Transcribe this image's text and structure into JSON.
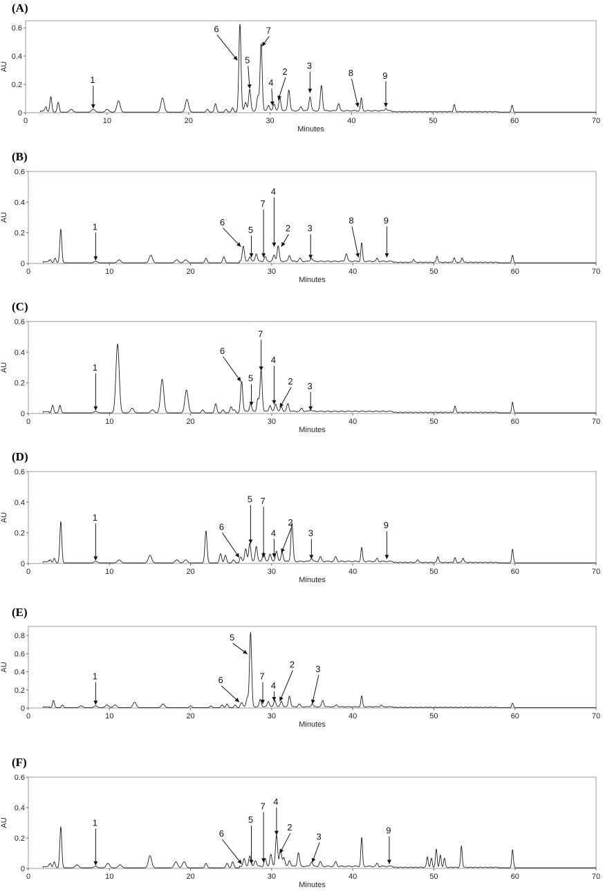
{
  "chart_data": [
    {
      "panel": "(A)",
      "type": "line",
      "xlabel": "Minutes",
      "ylabel": "AU",
      "xlim": [
        0,
        70
      ],
      "ylim": [
        0,
        0.65
      ],
      "xticks": [
        0,
        10,
        20,
        30,
        40,
        50,
        60,
        70
      ],
      "yticks": [
        0,
        0.2,
        0.4,
        0.6
      ],
      "ytick_labels": [
        "0",
        "0.2",
        "0.4",
        "0.6"
      ],
      "peaks": [
        [
          2.5,
          0.03
        ],
        [
          3.1,
          0.11
        ],
        [
          4.0,
          0.07
        ],
        [
          5.6,
          0.02
        ],
        [
          8.3,
          0.02
        ],
        [
          10.0,
          0.02
        ],
        [
          11.4,
          0.08
        ],
        [
          16.8,
          0.1
        ],
        [
          19.8,
          0.09
        ],
        [
          22.3,
          0.02
        ],
        [
          23.3,
          0.06
        ],
        [
          24.6,
          0.02
        ],
        [
          25.4,
          0.03
        ],
        [
          26.3,
          0.62
        ],
        [
          27.0,
          0.06
        ],
        [
          27.5,
          0.15
        ],
        [
          28.5,
          0.1
        ],
        [
          28.9,
          0.48
        ],
        [
          29.8,
          0.04
        ],
        [
          30.5,
          0.05
        ],
        [
          31.2,
          0.09
        ],
        [
          32.3,
          0.15
        ],
        [
          33.8,
          0.03
        ],
        [
          34.9,
          0.1
        ],
        [
          36.3,
          0.18
        ],
        [
          38.4,
          0.05
        ],
        [
          41.2,
          0.09
        ],
        [
          44.2,
          0.02
        ],
        [
          52.6,
          0.05
        ],
        [
          59.7,
          0.05
        ]
      ],
      "annotations": [
        {
          "label": "1",
          "x": 8.3,
          "y": 0.02,
          "dx": 0,
          "dy": 0.18
        },
        {
          "label": "6",
          "x": 26.0,
          "y": 0.36,
          "dx": -2.5,
          "dy": 0.2
        },
        {
          "label": "5",
          "x": 27.5,
          "y": 0.16,
          "dx": -0.2,
          "dy": 0.18
        },
        {
          "label": "7",
          "x": 29.0,
          "y": 0.46,
          "dx": 0.9,
          "dy": 0.09
        },
        {
          "label": "4",
          "x": 30.3,
          "y": 0.04,
          "dx": -0.1,
          "dy": 0.14
        },
        {
          "label": "2",
          "x": 31.0,
          "y": 0.08,
          "dx": 0.9,
          "dy": 0.18
        },
        {
          "label": "3",
          "x": 34.9,
          "y": 0.13,
          "dx": 0,
          "dy": 0.17
        },
        {
          "label": "8",
          "x": 40.8,
          "y": 0.03,
          "dx": -0.8,
          "dy": 0.22
        },
        {
          "label": "9",
          "x": 44.2,
          "y": 0.03,
          "dx": 0,
          "dy": 0.2
        }
      ]
    },
    {
      "panel": "(B)",
      "type": "line",
      "xlabel": "Minutes",
      "ylabel": "AU",
      "xlim": [
        0,
        70
      ],
      "ylim": [
        0,
        0.6
      ],
      "xticks": [
        0,
        10,
        20,
        30,
        40,
        50,
        60,
        70
      ],
      "yticks": [
        0,
        0.2,
        0.4,
        0.6
      ],
      "ytick_labels": [
        "0",
        "0.2",
        "0.4",
        "0.6"
      ],
      "peaks": [
        [
          2.7,
          0.02
        ],
        [
          3.3,
          0.03
        ],
        [
          4.0,
          0.22
        ],
        [
          8.3,
          0.01
        ],
        [
          11.2,
          0.02
        ],
        [
          15.1,
          0.05
        ],
        [
          18.3,
          0.02
        ],
        [
          19.4,
          0.02
        ],
        [
          21.9,
          0.03
        ],
        [
          24.1,
          0.04
        ],
        [
          26.5,
          0.1
        ],
        [
          27.3,
          0.03
        ],
        [
          28.1,
          0.05
        ],
        [
          29.2,
          0.03
        ],
        [
          30.3,
          0.04
        ],
        [
          30.8,
          0.1
        ],
        [
          32.2,
          0.04
        ],
        [
          33.5,
          0.02
        ],
        [
          34.9,
          0.02
        ],
        [
          39.2,
          0.05
        ],
        [
          41.1,
          0.12
        ],
        [
          43.0,
          0.02
        ],
        [
          47.5,
          0.02
        ],
        [
          50.4,
          0.04
        ],
        [
          52.5,
          0.03
        ],
        [
          53.5,
          0.03
        ],
        [
          59.7,
          0.05
        ]
      ],
      "annotations": [
        {
          "label": "1",
          "x": 8.3,
          "y": 0.01,
          "dx": 0,
          "dy": 0.2
        },
        {
          "label": "6",
          "x": 26.2,
          "y": 0.1,
          "dx": -2.2,
          "dy": 0.14
        },
        {
          "label": "5",
          "x": 27.5,
          "y": 0.03,
          "dx": 0,
          "dy": 0.16
        },
        {
          "label": "7",
          "x": 29.0,
          "y": 0.03,
          "dx": 0,
          "dy": 0.33
        },
        {
          "label": "4",
          "x": 30.3,
          "y": 0.1,
          "dx": 0,
          "dy": 0.34
        },
        {
          "label": "2",
          "x": 31.2,
          "y": 0.1,
          "dx": 0.9,
          "dy": 0.1
        },
        {
          "label": "3",
          "x": 34.8,
          "y": 0.02,
          "dx": 0,
          "dy": 0.18
        },
        {
          "label": "8",
          "x": 40.7,
          "y": 0.03,
          "dx": -0.8,
          "dy": 0.22
        },
        {
          "label": "9",
          "x": 44.2,
          "y": 0.03,
          "dx": 0,
          "dy": 0.22
        }
      ]
    },
    {
      "panel": "(C)",
      "type": "line",
      "xlabel": "Minutes",
      "ylabel": "AU",
      "xlim": [
        0,
        70
      ],
      "ylim": [
        0,
        0.6
      ],
      "xticks": [
        0,
        10,
        20,
        30,
        40,
        50,
        60,
        70
      ],
      "yticks": [
        0,
        0.2,
        0.4,
        0.6
      ],
      "ytick_labels": [
        "0",
        "0.2",
        "0.4",
        "0.6"
      ],
      "peaks": [
        [
          3.0,
          0.05
        ],
        [
          3.9,
          0.05
        ],
        [
          8.3,
          0.01
        ],
        [
          11.0,
          0.45
        ],
        [
          12.8,
          0.03
        ],
        [
          15.3,
          0.02
        ],
        [
          16.5,
          0.22
        ],
        [
          19.5,
          0.15
        ],
        [
          21.5,
          0.02
        ],
        [
          23.1,
          0.06
        ],
        [
          24.0,
          0.02
        ],
        [
          25.0,
          0.04
        ],
        [
          25.4,
          0.02
        ],
        [
          26.3,
          0.2
        ],
        [
          27.4,
          0.05
        ],
        [
          28.3,
          0.08
        ],
        [
          28.7,
          0.27
        ],
        [
          29.8,
          0.04
        ],
        [
          30.5,
          0.05
        ],
        [
          31.2,
          0.03
        ],
        [
          32.0,
          0.05
        ],
        [
          33.7,
          0.02
        ],
        [
          34.8,
          0.01
        ],
        [
          52.6,
          0.04
        ],
        [
          59.7,
          0.07
        ]
      ],
      "annotations": [
        {
          "label": "1",
          "x": 8.3,
          "y": 0.01,
          "dx": 0,
          "dy": 0.26
        },
        {
          "label": "6",
          "x": 26.2,
          "y": 0.2,
          "dx": -2.2,
          "dy": 0.18
        },
        {
          "label": "5",
          "x": 27.5,
          "y": 0.04,
          "dx": 0,
          "dy": 0.16
        },
        {
          "label": "7",
          "x": 28.7,
          "y": 0.27,
          "dx": 0,
          "dy": 0.22
        },
        {
          "label": "4",
          "x": 30.3,
          "y": 0.05,
          "dx": 0,
          "dy": 0.27
        },
        {
          "label": "2",
          "x": 31.0,
          "y": 0.03,
          "dx": 1.4,
          "dy": 0.15
        },
        {
          "label": "3",
          "x": 34.8,
          "y": 0.01,
          "dx": 0,
          "dy": 0.14
        }
      ]
    },
    {
      "panel": "(D)",
      "type": "line",
      "xlabel": "Minutes",
      "ylabel": "AU",
      "xlim": [
        0,
        70
      ],
      "ylim": [
        0,
        0.6
      ],
      "xticks": [
        0,
        10,
        20,
        30,
        40,
        50,
        60,
        70
      ],
      "yticks": [
        0,
        0.2,
        0.4,
        0.6
      ],
      "ytick_labels": [
        "0",
        "0.2",
        "0.4",
        "0.6"
      ],
      "peaks": [
        [
          2.7,
          0.02
        ],
        [
          3.2,
          0.03
        ],
        [
          4.0,
          0.27
        ],
        [
          8.3,
          0.01
        ],
        [
          11.2,
          0.02
        ],
        [
          15.0,
          0.05
        ],
        [
          18.3,
          0.02
        ],
        [
          19.4,
          0.02
        ],
        [
          21.9,
          0.21
        ],
        [
          23.7,
          0.06
        ],
        [
          24.3,
          0.05
        ],
        [
          25.3,
          0.02
        ],
        [
          26.2,
          0.03
        ],
        [
          26.8,
          0.08
        ],
        [
          27.3,
          0.12
        ],
        [
          28.1,
          0.1
        ],
        [
          29.0,
          0.06
        ],
        [
          29.8,
          0.05
        ],
        [
          30.6,
          0.07
        ],
        [
          31.3,
          0.06
        ],
        [
          32.5,
          0.25
        ],
        [
          34.9,
          0.02
        ],
        [
          36.0,
          0.03
        ],
        [
          37.9,
          0.03
        ],
        [
          41.1,
          0.09
        ],
        [
          43.0,
          0.02
        ],
        [
          48.0,
          0.02
        ],
        [
          50.5,
          0.04
        ],
        [
          52.6,
          0.03
        ],
        [
          53.6,
          0.03
        ],
        [
          59.7,
          0.09
        ]
      ],
      "annotations": [
        {
          "label": "1",
          "x": 8.3,
          "y": 0.01,
          "dx": 0,
          "dy": 0.26
        },
        {
          "label": "6",
          "x": 26.0,
          "y": 0.03,
          "dx": -2.1,
          "dy": 0.18
        },
        {
          "label": "5",
          "x": 27.4,
          "y": 0.12,
          "dx": 0,
          "dy": 0.27
        },
        {
          "label": "7",
          "x": 29.0,
          "y": 0.03,
          "dx": 0,
          "dy": 0.35
        },
        {
          "label": "4",
          "x": 30.3,
          "y": 0.03,
          "dx": 0,
          "dy": 0.14
        },
        {
          "label": "2",
          "x": 31.2,
          "y": 0.06,
          "dx": 1.2,
          "dy": 0.18
        },
        {
          "label": "3",
          "x": 34.9,
          "y": 0.02,
          "dx": 0,
          "dy": 0.15
        },
        {
          "label": "9",
          "x": 44.2,
          "y": 0.02,
          "dx": 0,
          "dy": 0.2
        }
      ]
    },
    {
      "panel": "(E)",
      "type": "line",
      "xlabel": "Minutes",
      "ylabel": "AU",
      "xlim": [
        0,
        70
      ],
      "ylim": [
        0,
        0.9
      ],
      "xticks": [
        0,
        10,
        20,
        30,
        40,
        50,
        60,
        70
      ],
      "yticks": [
        0,
        0.2,
        0.4,
        0.6,
        0.8
      ],
      "ytick_labels": [
        "0",
        "0.2",
        "0.4",
        "0.6",
        "0.8"
      ],
      "peaks": [
        [
          3.1,
          0.08
        ],
        [
          4.2,
          0.03
        ],
        [
          6.5,
          0.02
        ],
        [
          8.3,
          0.02
        ],
        [
          9.7,
          0.03
        ],
        [
          10.7,
          0.03
        ],
        [
          13.1,
          0.06
        ],
        [
          16.6,
          0.04
        ],
        [
          20.0,
          0.02
        ],
        [
          22.5,
          0.02
        ],
        [
          23.9,
          0.03
        ],
        [
          24.5,
          0.04
        ],
        [
          25.5,
          0.03
        ],
        [
          26.3,
          0.05
        ],
        [
          27.0,
          0.1
        ],
        [
          27.4,
          0.82
        ],
        [
          28.6,
          0.08
        ],
        [
          29.6,
          0.06
        ],
        [
          30.4,
          0.07
        ],
        [
          31.2,
          0.06
        ],
        [
          32.2,
          0.12
        ],
        [
          33.4,
          0.03
        ],
        [
          35.0,
          0.03
        ],
        [
          36.3,
          0.07
        ],
        [
          38.0,
          0.02
        ],
        [
          41.1,
          0.12
        ],
        [
          43.5,
          0.02
        ],
        [
          59.7,
          0.05
        ]
      ],
      "annotations": [
        {
          "label": "1",
          "x": 8.3,
          "y": 0.02,
          "dx": 0,
          "dy": 0.28
        },
        {
          "label": "6",
          "x": 26.0,
          "y": 0.05,
          "dx": -2.2,
          "dy": 0.21
        },
        {
          "label": "5",
          "x": 27.0,
          "y": 0.58,
          "dx": -1.8,
          "dy": 0.15
        },
        {
          "label": "7",
          "x": 28.9,
          "y": 0.03,
          "dx": 0,
          "dy": 0.27
        },
        {
          "label": "4",
          "x": 30.3,
          "y": 0.06,
          "dx": 0,
          "dy": 0.14
        },
        {
          "label": "2",
          "x": 31.0,
          "y": 0.06,
          "dx": 1.6,
          "dy": 0.37
        },
        {
          "label": "3",
          "x": 35.0,
          "y": 0.03,
          "dx": 0.8,
          "dy": 0.35
        }
      ]
    },
    {
      "panel": "(F)",
      "type": "line",
      "xlabel": "Minutes",
      "ylabel": "AU",
      "xlim": [
        0,
        70
      ],
      "ylim": [
        0,
        0.6
      ],
      "xticks": [
        0,
        10,
        20,
        30,
        40,
        50,
        60,
        70
      ],
      "yticks": [
        0,
        0.2,
        0.4,
        0.6
      ],
      "ytick_labels": [
        "0",
        "0.2",
        "0.4",
        "0.6"
      ],
      "peaks": [
        [
          2.7,
          0.03
        ],
        [
          3.2,
          0.04
        ],
        [
          4.0,
          0.27
        ],
        [
          6.0,
          0.02
        ],
        [
          8.3,
          0.01
        ],
        [
          9.8,
          0.03
        ],
        [
          11.3,
          0.02
        ],
        [
          15.0,
          0.08
        ],
        [
          18.2,
          0.04
        ],
        [
          19.2,
          0.04
        ],
        [
          21.9,
          0.03
        ],
        [
          24.5,
          0.03
        ],
        [
          25.2,
          0.04
        ],
        [
          26.6,
          0.05
        ],
        [
          27.3,
          0.07
        ],
        [
          28.0,
          0.04
        ],
        [
          29.2,
          0.05
        ],
        [
          29.9,
          0.08
        ],
        [
          30.6,
          0.21
        ],
        [
          31.1,
          0.11
        ],
        [
          31.5,
          0.06
        ],
        [
          32.2,
          0.04
        ],
        [
          33.3,
          0.09
        ],
        [
          34.9,
          0.03
        ],
        [
          36.0,
          0.03
        ],
        [
          37.9,
          0.03
        ],
        [
          41.1,
          0.19
        ],
        [
          43.0,
          0.02
        ],
        [
          49.2,
          0.07
        ],
        [
          49.7,
          0.06
        ],
        [
          50.3,
          0.12
        ],
        [
          50.8,
          0.08
        ],
        [
          51.3,
          0.06
        ],
        [
          53.4,
          0.14
        ],
        [
          59.7,
          0.12
        ]
      ],
      "annotations": [
        {
          "label": "1",
          "x": 8.3,
          "y": 0.01,
          "dx": 0,
          "dy": 0.26
        },
        {
          "label": "6",
          "x": 26.3,
          "y": 0.02,
          "dx": -2.4,
          "dy": 0.18
        },
        {
          "label": "5",
          "x": 27.5,
          "y": 0.02,
          "dx": 0,
          "dy": 0.27
        },
        {
          "label": "7",
          "x": 29.0,
          "y": 0.03,
          "dx": 0,
          "dy": 0.35
        },
        {
          "label": "4",
          "x": 30.6,
          "y": 0.21,
          "dx": 0,
          "dy": 0.2
        },
        {
          "label": "2",
          "x": 31.0,
          "y": 0.09,
          "dx": 1.3,
          "dy": 0.15
        },
        {
          "label": "3",
          "x": 35.0,
          "y": 0.03,
          "dx": 0.9,
          "dy": 0.15
        },
        {
          "label": "9",
          "x": 44.5,
          "y": 0.02,
          "dx": 0,
          "dy": 0.2
        }
      ]
    }
  ]
}
